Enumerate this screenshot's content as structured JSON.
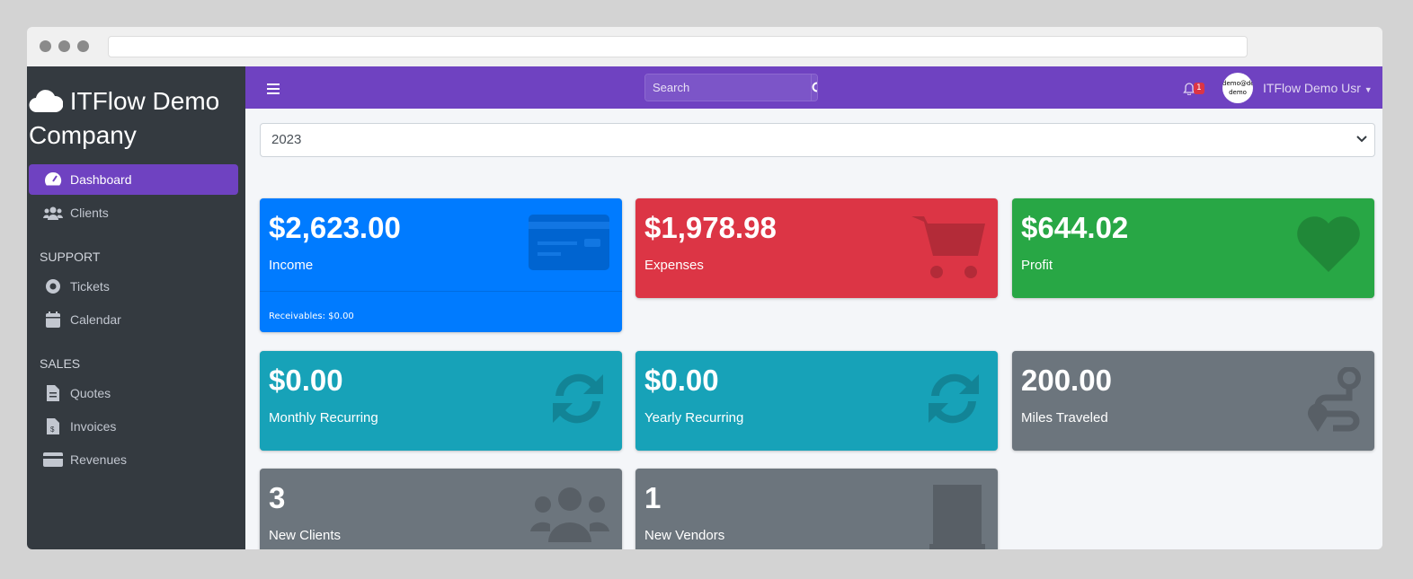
{
  "brand": {
    "title": "ITFlow Demo Company",
    "icon": "cloud-icon"
  },
  "sidebar": {
    "items": [
      {
        "label": "Dashboard",
        "icon": "dashboard-icon",
        "active": true
      },
      {
        "label": "Clients",
        "icon": "users-icon"
      }
    ],
    "sections": [
      {
        "header": "SUPPORT",
        "items": [
          {
            "label": "Tickets",
            "icon": "life-ring-icon"
          },
          {
            "label": "Calendar",
            "icon": "calendar-icon"
          }
        ]
      },
      {
        "header": "SALES",
        "items": [
          {
            "label": "Quotes",
            "icon": "file-icon"
          },
          {
            "label": "Invoices",
            "icon": "invoice-icon"
          },
          {
            "label": "Revenues",
            "icon": "credit-card-icon"
          }
        ]
      }
    ]
  },
  "topbar": {
    "search_placeholder": "Search",
    "notifications": "1",
    "avatar_text": "demo@demo demo",
    "user": "ITFlow Demo Usr"
  },
  "year_select": "2023",
  "cards": [
    {
      "value": "$2,623.00",
      "label": "Income",
      "footer": "Receivables: $0.00",
      "color": "#007bff",
      "icon": "credit-card-icon"
    },
    {
      "value": "$1,978.98",
      "label": "Expenses",
      "color": "#dc3545",
      "icon": "cart-icon"
    },
    {
      "value": "$644.02",
      "label": "Profit",
      "color": "#28a745",
      "icon": "heart-icon"
    },
    {
      "value": "$0.00",
      "label": "Monthly Recurring",
      "color": "#17a2b8",
      "icon": "sync-icon"
    },
    {
      "value": "$0.00",
      "label": "Yearly Recurring",
      "color": "#17a2b8",
      "icon": "sync-icon"
    },
    {
      "value": "200.00",
      "label": "Miles Traveled",
      "color": "#6c757d",
      "icon": "route-icon"
    },
    {
      "value": "3",
      "label": "New Clients",
      "color": "#6c757d",
      "icon": "users-icon"
    },
    {
      "value": "1",
      "label": "New Vendors",
      "color": "#6c757d",
      "icon": "building-icon"
    }
  ]
}
